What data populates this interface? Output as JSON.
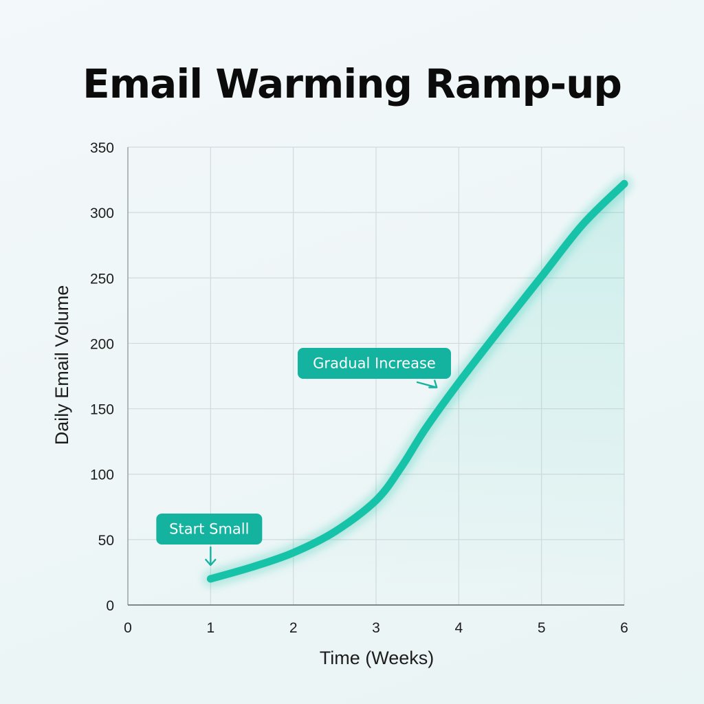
{
  "chart_data": {
    "type": "line",
    "title": "Email Warming Ramp-up",
    "xlabel": "Time (Weeks)",
    "ylabel": "Daily Email Volume",
    "xlim": [
      0,
      6
    ],
    "ylim": [
      0,
      350
    ],
    "xticks": [
      0,
      1,
      2,
      3,
      4,
      5,
      6
    ],
    "yticks": [
      0,
      50,
      100,
      150,
      200,
      250,
      300,
      350
    ],
    "grid": true,
    "series": [
      {
        "color": "#17c3a8",
        "x": [
          1,
          1.5,
          2,
          2.5,
          3,
          3.3,
          3.6,
          4,
          4.5,
          5,
          5.5,
          6
        ],
        "y": [
          20,
          29,
          40,
          56,
          80,
          105,
          135,
          170,
          211,
          251,
          291,
          322
        ]
      }
    ],
    "annotations": [
      {
        "text": "Start Small",
        "x": 1,
        "y": 20
      },
      {
        "text": "Gradual Increase",
        "x": 3.8,
        "y": 160
      }
    ],
    "colors": {
      "line": "#17c3a8",
      "callout": "#14b3a0",
      "grid": "#d3dadd"
    }
  }
}
